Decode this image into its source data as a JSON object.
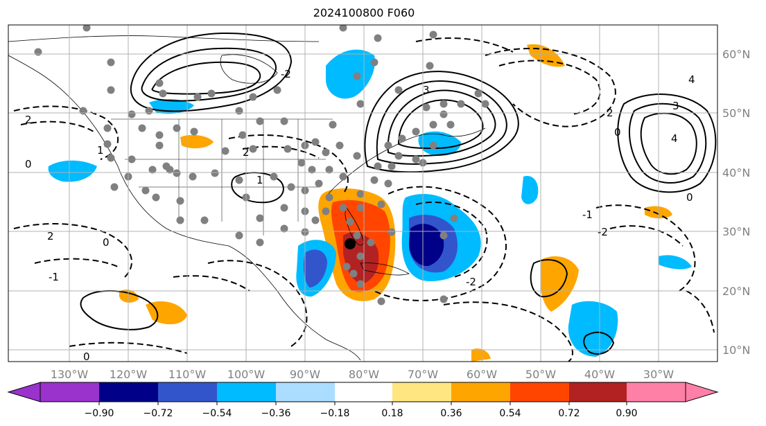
{
  "title": "2024100800 F060",
  "map": {
    "lon_labels": [
      "130°W",
      "120°W",
      "110°W",
      "100°W",
      "90°W",
      "80°W",
      "70°W",
      "60°W",
      "50°W",
      "40°W",
      "30°W"
    ],
    "lat_labels": [
      "60°N",
      "50°N",
      "40°N",
      "30°N",
      "20°N",
      "10°N"
    ],
    "contour_labels": [
      "2",
      "0",
      "1",
      "2",
      "3",
      "4",
      "3",
      "4",
      "2",
      "0",
      "-1",
      "-2",
      "0",
      "-2",
      "2",
      "0",
      "1",
      "-1",
      "-2",
      "0"
    ],
    "center_marker": "black-circle"
  },
  "colorbar": {
    "ticks": [
      "−0.90",
      "−0.72",
      "−0.54",
      "−0.36",
      "−0.18",
      "0.18",
      "0.36",
      "0.54",
      "0.72",
      "0.90"
    ],
    "colors": [
      "#9933cc",
      "#000088",
      "#3355cc",
      "#00bbff",
      "#aaddff",
      "#ffffff",
      "#ffe680",
      "#ffa500",
      "#ff4500",
      "#b22222",
      "#ff80a6"
    ]
  }
}
